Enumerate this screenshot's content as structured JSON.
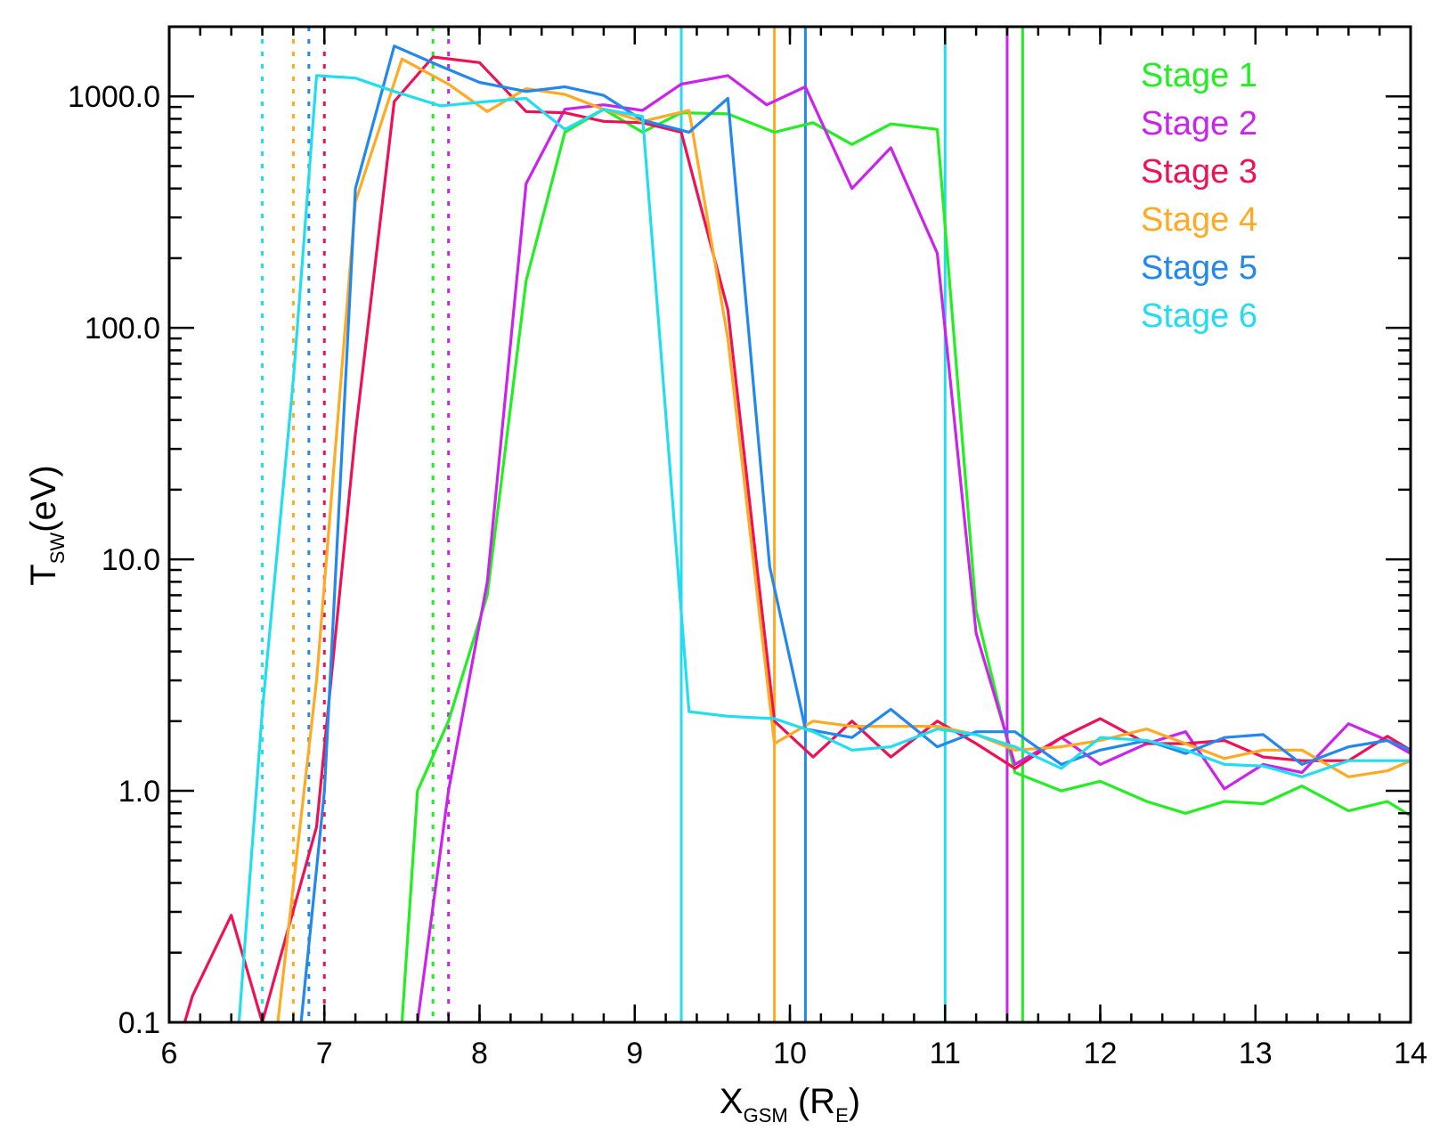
{
  "chart_data": {
    "type": "line",
    "xlabel": "X",
    "xlabel_sub": "GSM",
    "xlabel_unit_pre": " (R",
    "xlabel_unit_sub": "E",
    "xlabel_unit_post": ")",
    "ylabel": "T",
    "ylabel_sub": "SW",
    "ylabel_unit": "(eV)",
    "xlim": [
      6,
      14
    ],
    "ylim": [
      0.1,
      2000
    ],
    "yscale": "log",
    "x_ticks": [
      "6",
      "7",
      "8",
      "9",
      "10",
      "11",
      "12",
      "13",
      "14"
    ],
    "y_ticks": [
      "0.1",
      "1.0",
      "10.0",
      "100.0",
      "1000.0"
    ],
    "grid": false,
    "legend_position": "top-right",
    "series": [
      {
        "name": "Stage 1",
        "color": "#22ee22",
        "x": [
          7.5,
          7.6,
          7.8,
          8.05,
          8.3,
          8.55,
          8.8,
          9.05,
          9.3,
          9.6,
          9.9,
          10.15,
          10.4,
          10.65,
          10.95,
          11.2,
          11.45,
          11.75,
          12.0,
          12.3,
          12.55,
          12.8,
          13.05,
          13.3,
          13.6,
          13.85,
          14.0
        ],
        "y": [
          0.1,
          1.0,
          2.0,
          7.0,
          160,
          700,
          880,
          700,
          850,
          840,
          700,
          770,
          620,
          760,
          720,
          6.0,
          1.2,
          1.0,
          1.1,
          0.9,
          0.8,
          0.9,
          0.88,
          1.05,
          0.82,
          0.9,
          0.78
        ],
        "boundary_dotted": 7.7,
        "boundary_solid": 11.5
      },
      {
        "name": "Stage 2",
        "color": "#cc22ee",
        "x": [
          7.6,
          7.8,
          8.05,
          8.3,
          8.55,
          8.8,
          9.05,
          9.3,
          9.6,
          9.85,
          10.1,
          10.4,
          10.65,
          10.95,
          11.2,
          11.45,
          11.75,
          12.0,
          12.3,
          12.55,
          12.8,
          13.05,
          13.3,
          13.6,
          13.85,
          14.0
        ],
        "y": [
          0.1,
          1.0,
          8.0,
          420,
          880,
          920,
          870,
          1130,
          1230,
          920,
          1100,
          400,
          600,
          210,
          4.8,
          1.3,
          1.7,
          1.3,
          1.6,
          1.8,
          1.02,
          1.3,
          1.2,
          1.95,
          1.65,
          1.45
        ],
        "boundary_dotted": 7.8,
        "boundary_solid": 11.4
      },
      {
        "name": "Stage 3",
        "color": "#ee1155",
        "x": [
          6.1,
          6.15,
          6.4,
          6.6,
          6.95,
          7.2,
          7.45,
          7.7,
          8.0,
          8.3,
          8.55,
          8.8,
          9.05,
          9.3,
          9.6,
          9.9,
          10.15,
          10.4,
          10.65,
          10.95,
          11.2,
          11.45,
          11.75,
          12.0,
          12.3,
          12.55,
          12.8,
          13.05,
          13.3,
          13.6,
          13.85,
          14.0
        ],
        "y": [
          0.1,
          0.13,
          0.29,
          0.1,
          0.7,
          35,
          950,
          1480,
          1400,
          860,
          850,
          780,
          770,
          700,
          120,
          2.0,
          1.4,
          2.0,
          1.4,
          2.0,
          1.6,
          1.25,
          1.7,
          2.05,
          1.6,
          1.6,
          1.65,
          1.4,
          1.35,
          1.35,
          1.72,
          1.5
        ],
        "boundary_dotted": 7.0,
        "boundary_solid": null
      },
      {
        "name": "Stage 4",
        "color": "#ffaa22",
        "x": [
          6.7,
          6.95,
          7.2,
          7.5,
          7.8,
          8.05,
          8.3,
          8.55,
          8.8,
          9.05,
          9.35,
          9.6,
          9.9,
          10.15,
          10.4,
          10.65,
          10.95,
          11.2,
          11.45,
          11.75,
          12.0,
          12.3,
          12.55,
          12.8,
          13.05,
          13.3,
          13.6,
          13.85,
          14.0
        ],
        "y": [
          0.1,
          3.0,
          350,
          1450,
          1130,
          860,
          1080,
          1020,
          880,
          780,
          870,
          90,
          1.6,
          2.0,
          1.9,
          1.9,
          1.9,
          1.75,
          1.5,
          1.55,
          1.65,
          1.85,
          1.6,
          1.38,
          1.5,
          1.5,
          1.15,
          1.22,
          1.35
        ],
        "boundary_dotted": 6.8,
        "boundary_solid": 9.9
      },
      {
        "name": "Stage 5",
        "color": "#2288ee",
        "x": [
          6.85,
          7.0,
          7.2,
          7.45,
          7.75,
          8.0,
          8.3,
          8.55,
          8.8,
          9.05,
          9.35,
          9.6,
          9.87,
          10.1,
          10.4,
          10.65,
          10.95,
          11.2,
          11.45,
          11.75,
          12.0,
          12.3,
          12.55,
          12.8,
          13.05,
          13.3,
          13.6,
          13.85,
          14.0
        ],
        "y": [
          0.1,
          1.0,
          400,
          1650,
          1350,
          1150,
          1050,
          1100,
          1010,
          790,
          700,
          980,
          9.3,
          1.85,
          1.7,
          2.25,
          1.55,
          1.8,
          1.8,
          1.3,
          1.5,
          1.65,
          1.45,
          1.7,
          1.75,
          1.3,
          1.55,
          1.65,
          1.5
        ],
        "boundary_dotted": 6.9,
        "boundary_solid": 10.1
      },
      {
        "name": "Stage 6",
        "color": "#22ddf0",
        "x": [
          6.45,
          6.6,
          6.8,
          6.95,
          7.2,
          7.45,
          7.75,
          8.05,
          8.3,
          8.55,
          8.8,
          9.05,
          9.35,
          9.6,
          9.9,
          10.15,
          10.4,
          10.65,
          10.95,
          11.2,
          11.45,
          11.75,
          12.0,
          12.3,
          12.55,
          12.8,
          13.05,
          13.3,
          13.6,
          13.85,
          14.0
        ],
        "y": [
          0.1,
          2.2,
          60,
          1230,
          1200,
          1050,
          910,
          950,
          980,
          720,
          880,
          820,
          2.2,
          2.1,
          2.05,
          1.8,
          1.5,
          1.55,
          1.85,
          1.75,
          1.55,
          1.25,
          1.7,
          1.65,
          1.5,
          1.3,
          1.28,
          1.15,
          1.35,
          1.35,
          1.35
        ],
        "boundary_dotted": 6.6,
        "boundary_solid_list": [
          9.3,
          11.0
        ]
      }
    ]
  }
}
